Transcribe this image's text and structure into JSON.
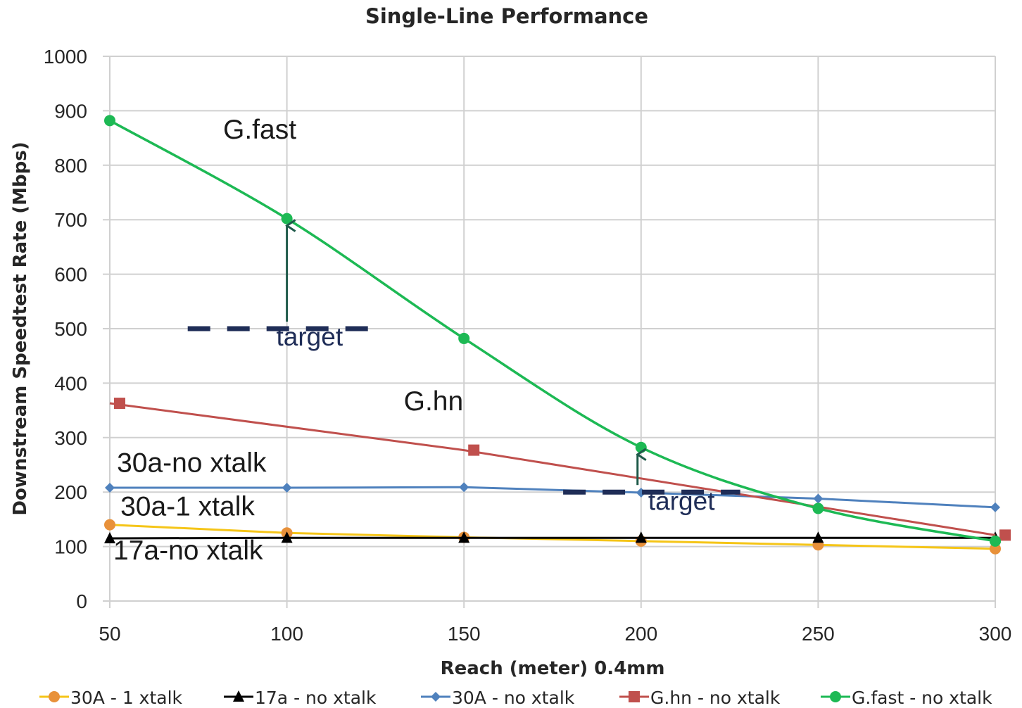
{
  "chart_data": {
    "type": "line",
    "title": "Single-Line Performance",
    "xlabel": "Reach (meter) 0.4mm",
    "ylabel": "Downstream Speedtest Rate  (Mbps)",
    "x": [
      50,
      100,
      150,
      200,
      250,
      300
    ],
    "x_tick_labels": [
      "50",
      "100",
      "150",
      "200",
      "250",
      "300"
    ],
    "xlim": [
      50,
      300
    ],
    "ylim": [
      0,
      1000
    ],
    "y_tick_labels": [
      "0",
      "100",
      "200",
      "300",
      "400",
      "500",
      "600",
      "700",
      "800",
      "900",
      "1000"
    ],
    "grid": true,
    "legend_position": "bottom",
    "series": [
      {
        "name": "30A - 1 xtalk",
        "color": "#f5c518",
        "marker_color": "#e8913a",
        "marker": "circle",
        "values": [
          140,
          125,
          117,
          110,
          103,
          96
        ]
      },
      {
        "name": "17a - no xtalk",
        "color": "#000000",
        "marker_color": "#000000",
        "marker": "triangle",
        "values": [
          115,
          116,
          116,
          116,
          116,
          116
        ]
      },
      {
        "name": "30A - no xtalk",
        "color": "#4f81bd",
        "marker_color": "#4f81bd",
        "marker": "diamond",
        "values": [
          208,
          208,
          209,
          199,
          188,
          172
        ]
      },
      {
        "name": "G.hn - no xtalk",
        "color": "#c0504d",
        "marker_color": "#c0504d",
        "marker": "square",
        "values": [
          363,
          null,
          277,
          null,
          null,
          121
        ]
      },
      {
        "name": "G.fast - no xtalk",
        "color": "#1db954",
        "marker_color": "#1db954",
        "marker": "circle",
        "values": [
          882,
          702,
          482,
          282,
          170,
          110
        ]
      }
    ],
    "annotations": [
      {
        "text": "G.fast",
        "x": 82,
        "y": 849
      },
      {
        "text": "G.hn",
        "x": 133,
        "y": 350
      },
      {
        "text": "30a-no xtalk",
        "x": 52,
        "y": 237
      },
      {
        "text": "30a-1 xtalk",
        "x": 53,
        "y": 157
      },
      {
        "text": "17a-no xtalk",
        "x": 51,
        "y": 76
      },
      {
        "text": "target",
        "x": 97,
        "y": 469
      },
      {
        "text": "target",
        "x": 202,
        "y": 167
      }
    ],
    "target_lines": [
      {
        "label": "target",
        "x_start": 72,
        "x_end": 123,
        "y": 500,
        "arrow_to": [
          100,
          702
        ]
      },
      {
        "label": "target",
        "x_start": 178,
        "x_end": 228,
        "y": 200,
        "arrow_to": [
          199,
          282
        ]
      }
    ]
  }
}
